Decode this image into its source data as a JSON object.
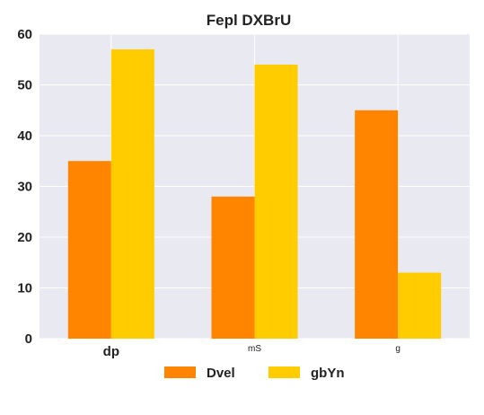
{
  "chart_data": {
    "type": "bar",
    "title": "Fepl DXBrU",
    "xlabel": "",
    "ylabel": "",
    "categories": [
      "dp",
      "mS",
      "g"
    ],
    "category_label_styles": [
      {
        "size": "large",
        "bold": true
      },
      {
        "size": "small",
        "bold": false
      },
      {
        "size": "small",
        "bold": false
      }
    ],
    "series": [
      {
        "name": "Dvel",
        "color": "#ff8500",
        "values": [
          35,
          28,
          45
        ]
      },
      {
        "name": "gbYn",
        "color": "#ffcc00",
        "values": [
          57,
          54,
          13
        ]
      }
    ],
    "ylim": [
      0,
      60
    ],
    "yticks": [
      0,
      10,
      20,
      30,
      40,
      50,
      60
    ],
    "grid": true,
    "background_color": "#e9e9f2",
    "legend_position": "bottom"
  }
}
